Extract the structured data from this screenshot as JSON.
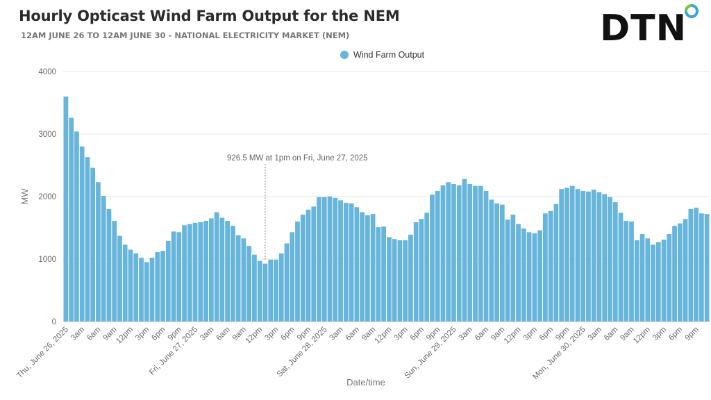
{
  "header": {
    "title": "Hourly Opticast Wind Farm Output for the NEM",
    "subtitle": "12AM JUNE 26 TO 12AM JUNE 30 - NATIONAL ELECTRICITY MARKET (NEM)",
    "logo_text": "DTN"
  },
  "chart_data": {
    "type": "bar",
    "title": "Hourly Opticast Wind Farm Output for the NEM",
    "subtitle": "12AM JUNE 26 TO 12AM JUNE 30 - NATIONAL ELECTRICITY MARKET (NEM)",
    "xlabel": "Date/time",
    "ylabel": "MW",
    "ylim": [
      0,
      4000
    ],
    "yticks": [
      0,
      1000,
      2000,
      3000,
      4000
    ],
    "grid": true,
    "legend_position": "top-center",
    "color": "#67b5db",
    "series": [
      {
        "name": "Wind Farm Output",
        "values": [
          3600,
          3260,
          3040,
          2800,
          2630,
          2460,
          2230,
          2010,
          1800,
          1610,
          1370,
          1230,
          1150,
          1090,
          1020,
          950,
          1020,
          1110,
          1130,
          1290,
          1440,
          1430,
          1540,
          1560,
          1580,
          1590,
          1610,
          1650,
          1750,
          1660,
          1610,
          1530,
          1380,
          1330,
          1210,
          1070,
          970,
          926.5,
          990,
          990,
          1090,
          1250,
          1430,
          1600,
          1710,
          1790,
          1840,
          1990,
          1990,
          2000,
          1980,
          1940,
          1900,
          1890,
          1830,
          1750,
          1700,
          1720,
          1510,
          1520,
          1350,
          1320,
          1300,
          1300,
          1390,
          1590,
          1640,
          1740,
          2030,
          2090,
          2180,
          2230,
          2200,
          2180,
          2280,
          2200,
          2170,
          2170,
          2090,
          1950,
          1890,
          1870,
          1630,
          1710,
          1560,
          1490,
          1430,
          1410,
          1460,
          1730,
          1770,
          1880,
          2120,
          2140,
          2170,
          2120,
          2090,
          2080,
          2110,
          2070,
          2040,
          1990,
          1910,
          1740,
          1610,
          1600,
          1300,
          1400,
          1330,
          1230,
          1270,
          1310,
          1400,
          1530,
          1570,
          1640,
          1800,
          1820,
          1730,
          1720
        ]
      }
    ],
    "x_tick_labels": [
      "Thu, June 26, 2025",
      "3am",
      "6am",
      "9am",
      "12pm",
      "3pm",
      "6pm",
      "9pm",
      "Fri, June 27, 2025",
      "3am",
      "6am",
      "9am",
      "12pm",
      "3pm",
      "6pm",
      "9pm",
      "Sat, June 28, 2025",
      "3am",
      "6am",
      "9am",
      "12pm",
      "3pm",
      "6pm",
      "9pm",
      "Sun, June 29, 2025",
      "3am",
      "6am",
      "9am",
      "12pm",
      "3pm",
      "6pm",
      "9pm",
      "Mon, June 30, 2025",
      "3am",
      "6am",
      "9am",
      "12pm",
      "3pm",
      "6pm",
      "9pm"
    ],
    "annotation": {
      "text": "926.5 MW at 1pm on Fri, June 27, 2025",
      "index": 37,
      "value": 926.5
    }
  }
}
